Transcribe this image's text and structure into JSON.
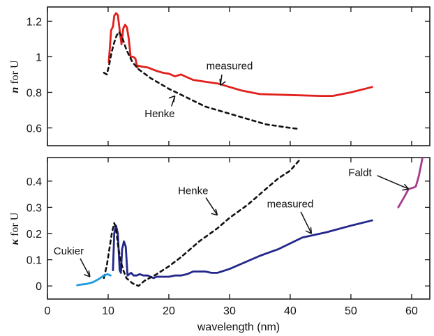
{
  "chart_data": [
    {
      "type": "line",
      "panel": "top",
      "ylabel_symbol": "n",
      "ylabel_text": " for U",
      "xlim": [
        0,
        63
      ],
      "ylim": [
        0.5,
        1.28
      ],
      "yticks": [
        0.6,
        0.8,
        1,
        1.2
      ],
      "ytick_labels": [
        "0.6",
        "0.8",
        "1",
        "1.2"
      ],
      "series": [
        {
          "name": "measured",
          "color": "#e0201c",
          "style": "solid",
          "x": [
            10.1,
            10.5,
            10.8,
            11.0,
            11.3,
            11.6,
            11.9,
            12.2,
            12.5,
            12.8,
            13.1,
            13.4,
            13.7,
            14.1,
            14.5,
            14.8,
            15.0,
            15.5,
            16.5,
            18,
            19,
            20,
            21,
            22,
            24,
            26,
            28,
            30,
            32,
            35,
            40,
            45,
            47,
            50,
            53.5
          ],
          "y": [
            0.97,
            1.15,
            1.17,
            1.23,
            1.245,
            1.235,
            1.15,
            1.07,
            1.16,
            1.18,
            1.165,
            1.1,
            1.0,
            1.0,
            0.99,
            0.94,
            0.95,
            0.945,
            0.94,
            0.92,
            0.91,
            0.905,
            0.89,
            0.9,
            0.87,
            0.86,
            0.85,
            0.83,
            0.81,
            0.79,
            0.785,
            0.78,
            0.78,
            0.8,
            0.83
          ]
        },
        {
          "name": "Henke",
          "color": "#111111",
          "style": "dashed",
          "x": [
            9.3,
            9.8,
            10.2,
            10.6,
            11.0,
            11.4,
            11.8,
            12.3,
            13,
            14,
            15,
            17,
            20,
            23,
            26,
            30,
            33,
            36,
            38,
            40,
            41.3
          ],
          "y": [
            0.91,
            0.9,
            0.96,
            1.03,
            1.08,
            1.12,
            1.14,
            1.11,
            1.04,
            0.97,
            0.93,
            0.88,
            0.82,
            0.77,
            0.72,
            0.68,
            0.65,
            0.62,
            0.61,
            0.6,
            0.595
          ]
        }
      ],
      "annotations": [
        {
          "label": "measured",
          "at": [
            28.5,
            0.84
          ],
          "text_at": [
            30,
            0.93
          ]
        },
        {
          "label": "Henke",
          "at": [
            21,
            0.78
          ],
          "text_at": [
            18.5,
            0.66
          ]
        }
      ]
    },
    {
      "type": "line",
      "panel": "bottom",
      "ylabel_symbol": "κ",
      "ylabel_text": " for U",
      "xlabel": "wavelength (nm)",
      "xlim": [
        0,
        63
      ],
      "ylim": [
        -0.05,
        0.49
      ],
      "xticks": [
        0,
        10,
        20,
        30,
        40,
        50,
        60
      ],
      "xtick_labels": [
        "0",
        "10",
        "20",
        "30",
        "40",
        "50",
        "60"
      ],
      "yticks": [
        0,
        0.1,
        0.2,
        0.3,
        0.4
      ],
      "ytick_labels": [
        "0",
        "0.1",
        "0.2",
        "0.3",
        "0.4"
      ],
      "series": [
        {
          "name": "measured",
          "color": "#23278a",
          "style": "solid",
          "x": [
            10.8,
            11.0,
            11.3,
            11.6,
            11.9,
            12.1,
            12.3,
            12.6,
            12.9,
            13.2,
            13.5,
            13.8,
            14.2,
            14.7,
            15.2,
            15.8,
            16.5,
            17.5,
            18,
            19,
            20,
            21,
            22,
            23,
            24,
            25,
            26,
            27,
            28,
            30,
            35,
            38,
            42,
            46,
            50,
            53.5
          ],
          "y": [
            0.06,
            0.2,
            0.23,
            0.2,
            0.06,
            0.05,
            0.14,
            0.17,
            0.15,
            0.04,
            0.045,
            0.05,
            0.04,
            0.04,
            0.045,
            0.04,
            0.04,
            0.03,
            0.035,
            0.035,
            0.035,
            0.04,
            0.04,
            0.045,
            0.055,
            0.055,
            0.055,
            0.05,
            0.05,
            0.065,
            0.115,
            0.14,
            0.185,
            0.205,
            0.23,
            0.25
          ]
        },
        {
          "name": "Henke",
          "color": "#111111",
          "style": "dashed",
          "x": [
            9.3,
            9.8,
            10.2,
            10.6,
            11.0,
            11.3,
            11.6,
            12.0,
            12.5,
            13.0,
            14,
            15,
            16,
            18,
            20,
            22,
            25,
            28,
            30,
            33,
            36,
            38,
            40,
            41.5
          ],
          "y": [
            0.03,
            0.08,
            0.14,
            0.2,
            0.24,
            0.22,
            0.16,
            0.1,
            0.06,
            0.03,
            0.01,
            0.0,
            0.02,
            0.045,
            0.075,
            0.11,
            0.17,
            0.22,
            0.26,
            0.31,
            0.37,
            0.41,
            0.44,
            0.48
          ]
        },
        {
          "name": "Cukier",
          "color": "#1f9be0",
          "style": "solid",
          "x": [
            4.9,
            5.5,
            6.5,
            7.5,
            8.5,
            9.3,
            9.9,
            10.4
          ],
          "y": [
            0.003,
            0.005,
            0.008,
            0.014,
            0.027,
            0.04,
            0.045,
            0.04
          ]
        },
        {
          "name": "Faldt",
          "color": "#a53b8f",
          "style": "solid",
          "x": [
            57.8,
            58.8,
            59.5,
            60.3,
            60.7,
            61.2,
            61.8
          ],
          "y": [
            0.3,
            0.34,
            0.37,
            0.375,
            0.38,
            0.42,
            0.49
          ]
        }
      ],
      "annotations": [
        {
          "label": "Henke",
          "at": [
            28,
            0.27
          ],
          "text_at": [
            24,
            0.35
          ]
        },
        {
          "label": "measured",
          "at": [
            43.5,
            0.2
          ],
          "text_at": [
            40,
            0.3
          ]
        },
        {
          "label": "Cukier",
          "at": [
            7,
            0.035
          ],
          "text_at": [
            3.5,
            0.12
          ]
        },
        {
          "label": "Faldt",
          "at": [
            59.5,
            0.37
          ],
          "text_at": [
            51.5,
            0.42
          ]
        }
      ]
    }
  ]
}
